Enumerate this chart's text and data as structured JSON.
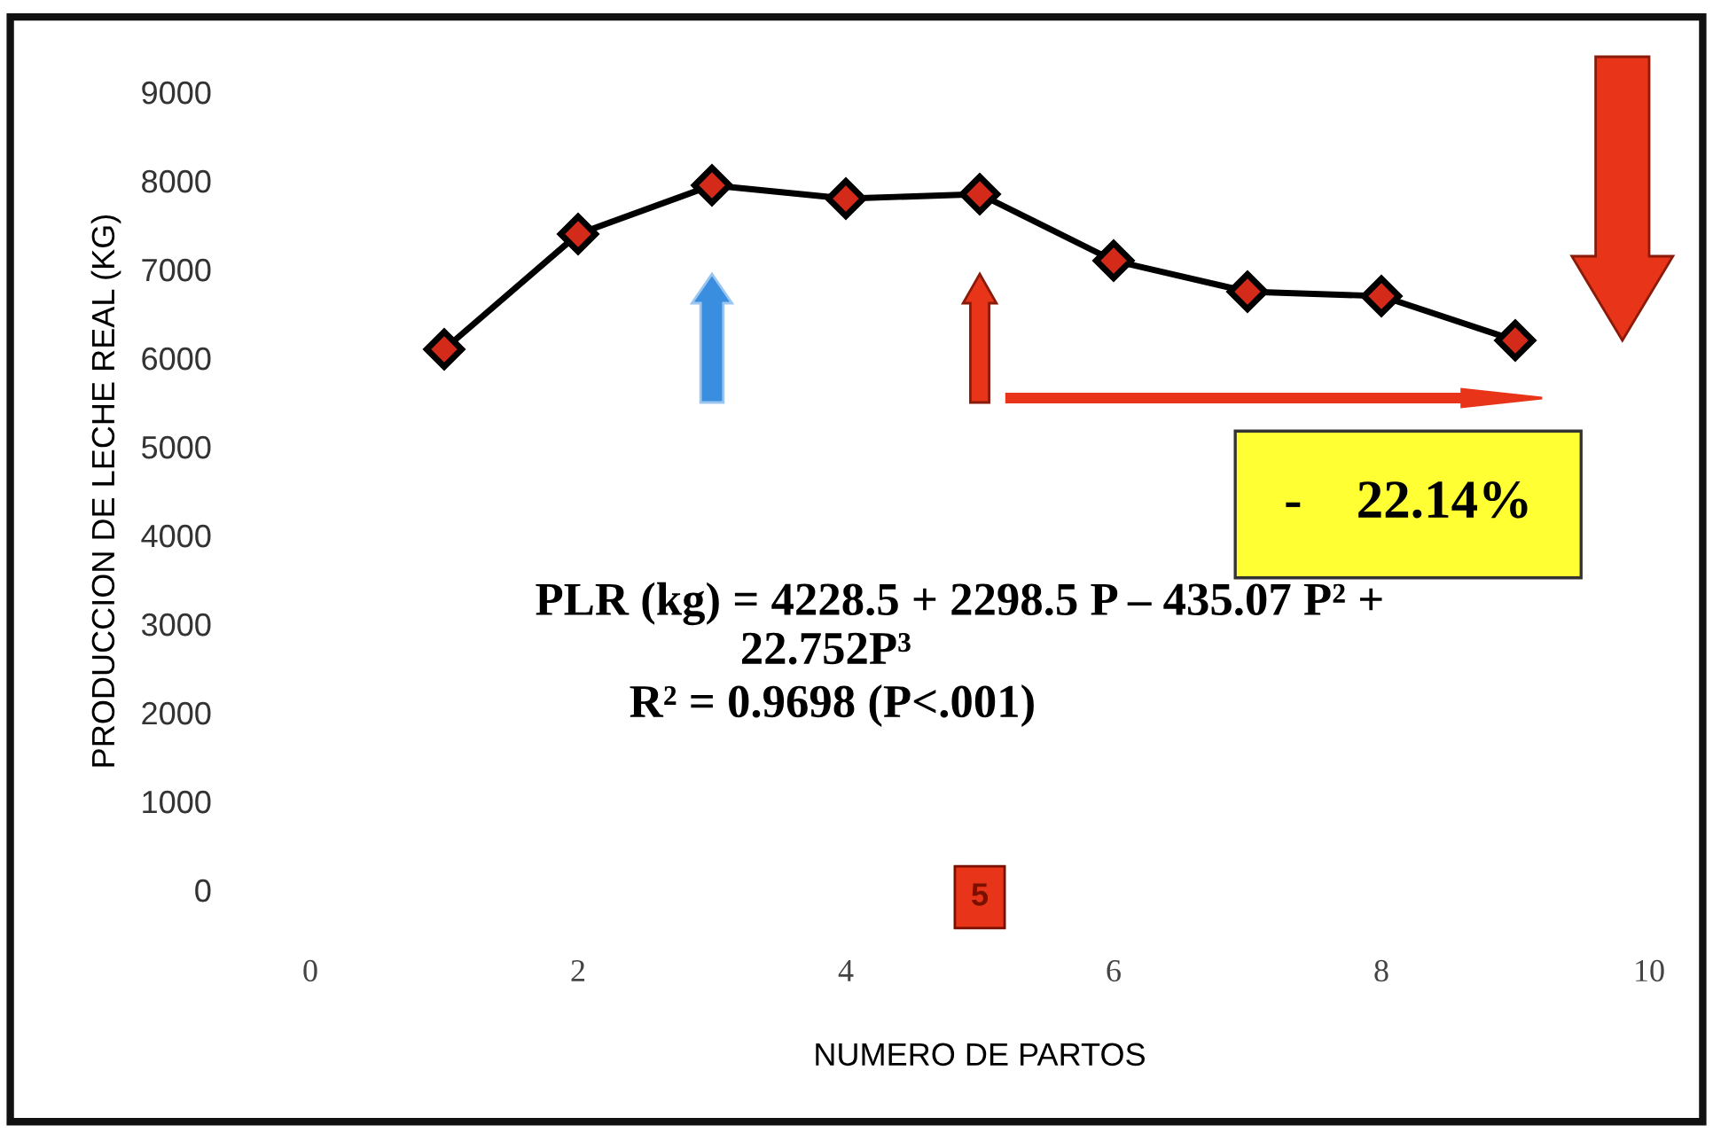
{
  "chart_data": {
    "type": "line",
    "xlabel": "NUMERO DE PARTOS",
    "ylabel": "PRODUCCION DE LECHE REAL (KG)",
    "x": [
      1,
      2,
      3,
      4,
      5,
      6,
      7,
      8,
      9
    ],
    "series": [
      {
        "color": "#000000",
        "values": [
          6100,
          7400,
          7950,
          7800,
          7850,
          7100,
          6750,
          6700,
          6200
        ]
      }
    ],
    "marker": "diamond",
    "line_style": "solid",
    "grid": false,
    "legend": false,
    "xlim": [
      0,
      10
    ],
    "xticks": [
      0,
      2,
      4,
      6,
      8,
      10
    ],
    "ylim": [
      0,
      9000
    ],
    "yticks": [
      0,
      1000,
      2000,
      3000,
      4000,
      5000,
      6000,
      7000,
      8000,
      9000
    ],
    "annotations": [
      "-    22.14%",
      "PLR (kg) = 4228.5 + 2298.5 P – 435.07 P² +",
      "22.752P³",
      "R² = 0.9698 (P<.001)",
      "5"
    ]
  }
}
